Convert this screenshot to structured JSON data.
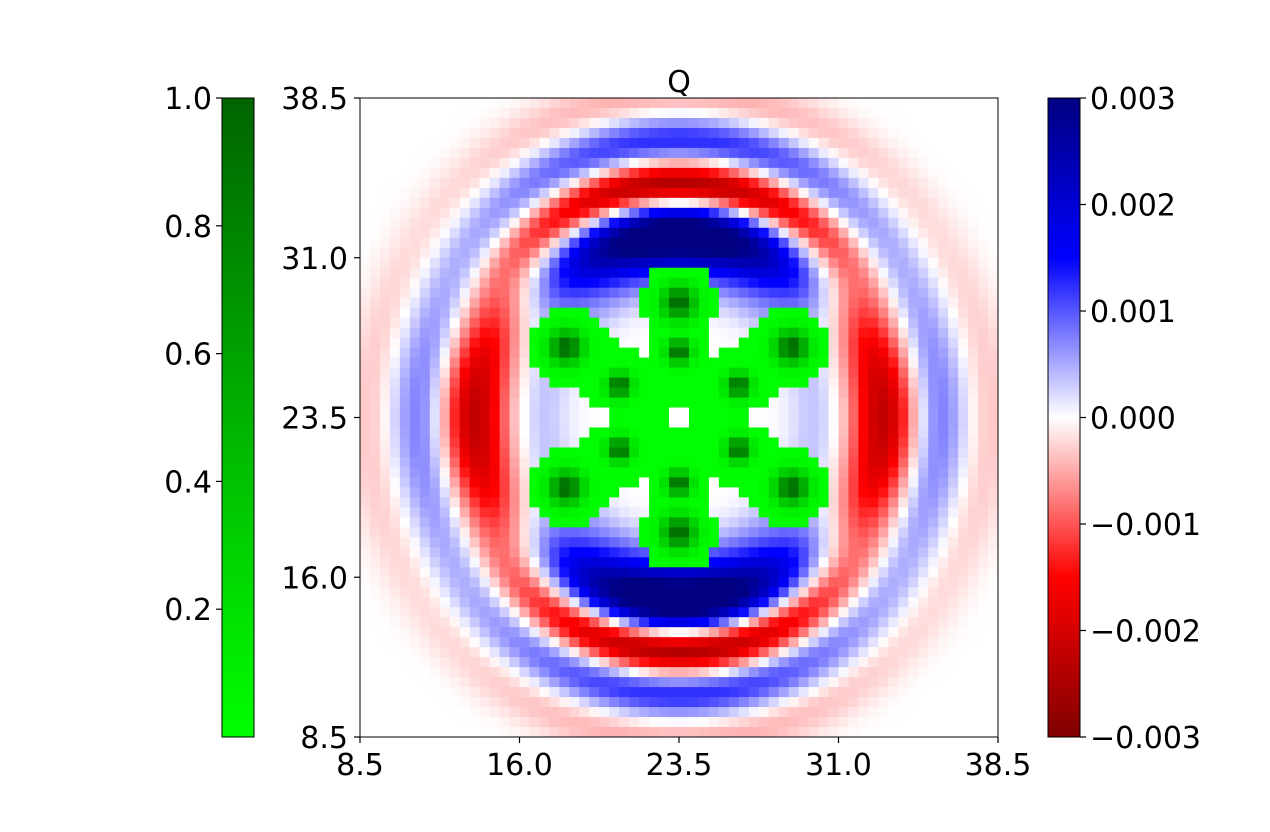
{
  "chart_data": {
    "type": "heatmap",
    "title": "Q",
    "xlabel": "",
    "ylabel": "",
    "xlim": [
      8.5,
      38.5
    ],
    "ylim": [
      8.5,
      38.5
    ],
    "xticks": [
      "8.5",
      "16.0",
      "23.5",
      "31.0",
      "38.5"
    ],
    "yticks": [
      "8.5",
      "16.0",
      "23.5",
      "31.0",
      "38.5"
    ],
    "grid": false,
    "scalar_field": {
      "name": "Q",
      "colormap": "seismic_r",
      "vmin": -0.003,
      "vmax": 0.003,
      "colorbar_position": "right",
      "colorbar_ticks": [
        "0.003",
        "0.002",
        "0.001",
        "0.000",
        "−0.001",
        "−0.002",
        "−0.003"
      ],
      "colors": {
        "negative_max": "#800000",
        "negative": "#ff0000",
        "zero": "#ffffff",
        "positive": "#0000ff",
        "positive_max": "#000080"
      }
    },
    "overlay_field": {
      "colormap": "green",
      "vmin": 0.0,
      "vmax": 1.0,
      "colorbar_position": "left",
      "colorbar_ticks": [
        "1.0",
        "0.8",
        "0.6",
        "0.4",
        "0.2"
      ],
      "colors": {
        "low": "#00ff00",
        "high": "#006400"
      },
      "shape": "six-armed molecule centered at (23.5, 23.5)"
    }
  }
}
